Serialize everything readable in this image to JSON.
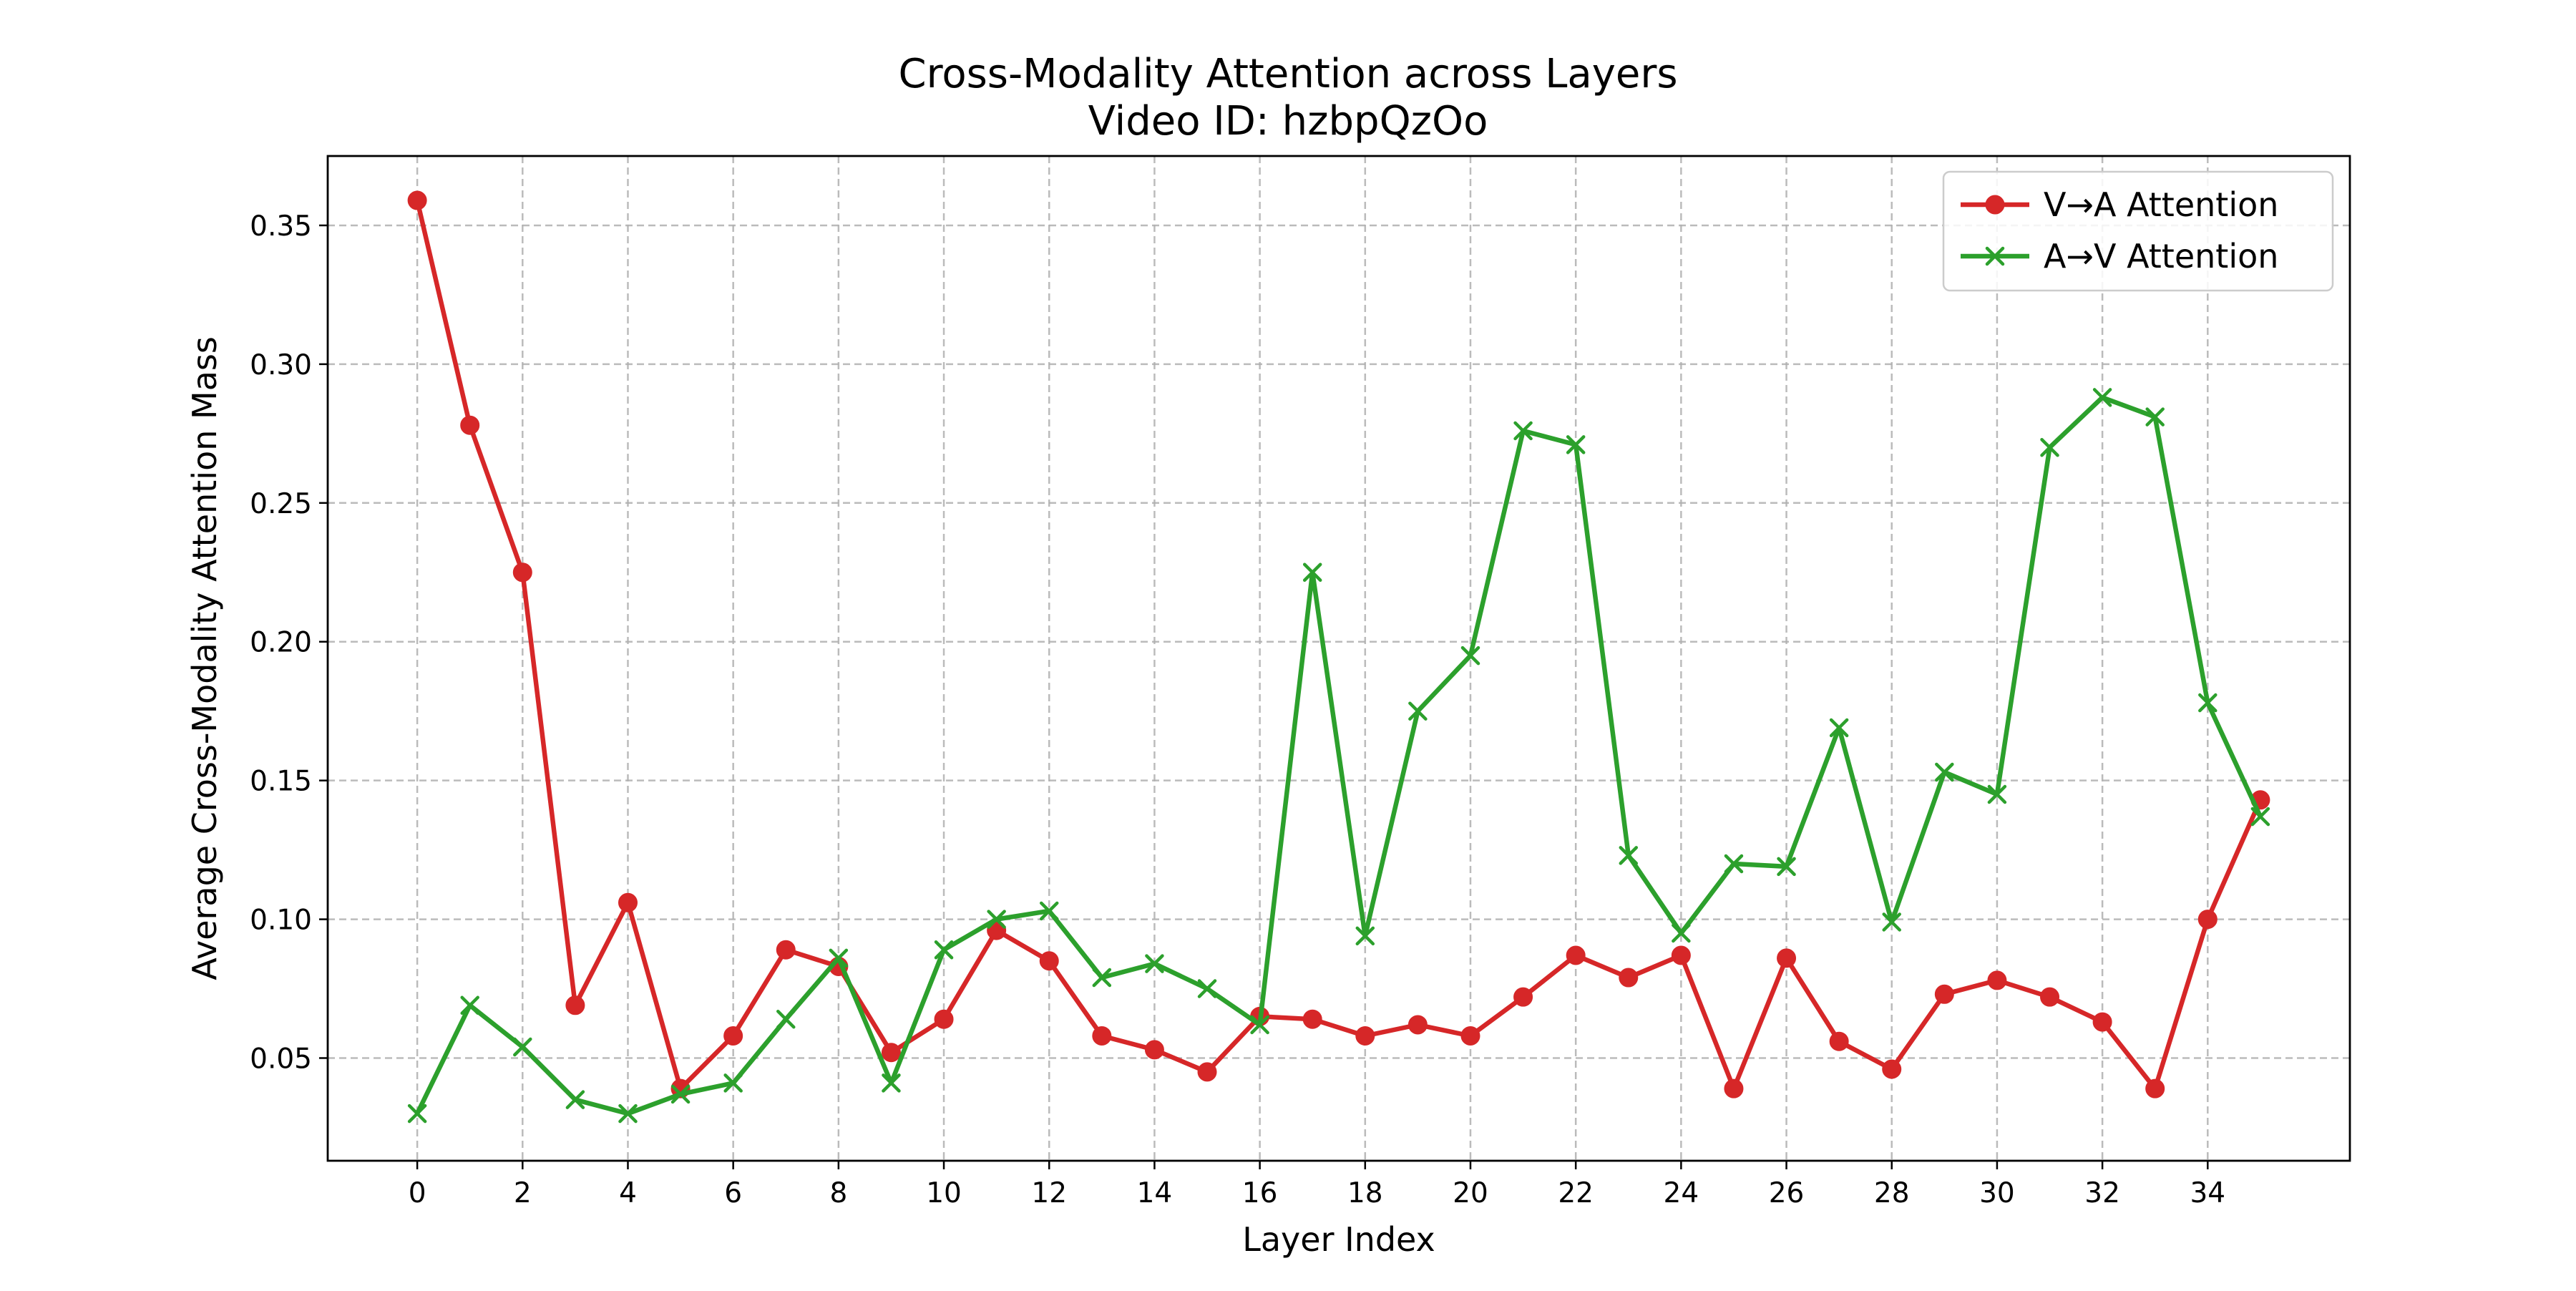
{
  "chart_data": {
    "type": "line",
    "title": "Cross-Modality Attention across Layers",
    "subtitle": "Video ID: hzbpQzOo",
    "xlabel": "Layer Index",
    "ylabel": "Average Cross-Modality Attention Mass",
    "xlim": [
      -1.7,
      36.7
    ],
    "ylim": [
      0.013,
      0.375
    ],
    "x_ticks": [
      0,
      2,
      4,
      6,
      8,
      10,
      12,
      14,
      16,
      18,
      20,
      22,
      24,
      26,
      28,
      30,
      32,
      34
    ],
    "y_ticks": [
      0.05,
      0.1,
      0.15,
      0.2,
      0.25,
      0.3,
      0.35
    ],
    "y_tick_labels": [
      "0.05",
      "0.10",
      "0.15",
      "0.20",
      "0.25",
      "0.30",
      "0.35"
    ],
    "grid": true,
    "legend_position": "top-right",
    "x": [
      0,
      1,
      2,
      3,
      4,
      5,
      6,
      7,
      8,
      9,
      10,
      11,
      12,
      13,
      14,
      15,
      16,
      17,
      18,
      19,
      20,
      21,
      22,
      23,
      24,
      25,
      26,
      27,
      28,
      29,
      30,
      31,
      32,
      33,
      34,
      35
    ],
    "series": [
      {
        "name": "V→A Attention",
        "color": "#d62728",
        "marker": "circle",
        "values": [
          0.359,
          0.278,
          0.225,
          0.069,
          0.106,
          0.039,
          0.058,
          0.089,
          0.083,
          0.052,
          0.064,
          0.096,
          0.085,
          0.058,
          0.053,
          0.045,
          0.065,
          0.064,
          0.058,
          0.062,
          0.058,
          0.072,
          0.087,
          0.079,
          0.087,
          0.039,
          0.086,
          0.056,
          0.046,
          0.073,
          0.078,
          0.072,
          0.063,
          0.039,
          0.1,
          0.143
        ]
      },
      {
        "name": "A→V Attention",
        "color": "#2ca02c",
        "marker": "x",
        "values": [
          0.03,
          0.069,
          0.054,
          0.035,
          0.03,
          0.037,
          0.041,
          0.064,
          0.086,
          0.041,
          0.089,
          0.1,
          0.103,
          0.079,
          0.084,
          0.075,
          0.062,
          0.225,
          0.094,
          0.175,
          0.195,
          0.276,
          0.271,
          0.123,
          0.095,
          0.12,
          0.119,
          0.169,
          0.099,
          0.153,
          0.145,
          0.27,
          0.288,
          0.281,
          0.178,
          0.137
        ]
      }
    ]
  }
}
